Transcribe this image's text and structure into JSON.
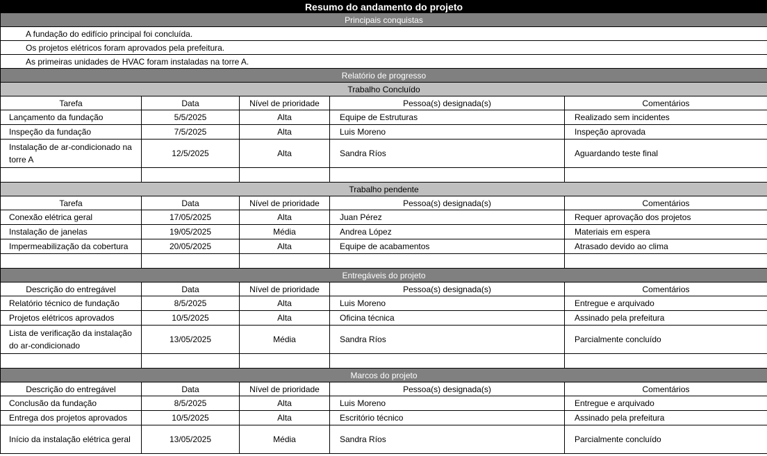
{
  "title": "Resumo do andamento do projeto",
  "achievements": {
    "heading": "Principais conquistas",
    "items": [
      "A fundação do edifício principal foi concluída.",
      "Os projetos elétricos foram aprovados pela prefeitura.",
      "As primeiras unidades de HVAC foram instaladas na torre A."
    ]
  },
  "progress_heading": "Relatório de progresso",
  "sections": [
    {
      "heading": "Trabalho Concluído",
      "style": "sub",
      "columns": [
        "Tarefa",
        "Data",
        "Nível de prioridade",
        "Pessoa(s) designada(s)",
        "Comentários"
      ],
      "rows": [
        [
          "Lançamento da fundação",
          "5/5/2025",
          "Alta",
          "Equipe de Estruturas",
          "Realizado sem incidentes"
        ],
        [
          "Inspeção da fundação",
          "7/5/2025",
          "Alta",
          "Luis Moreno",
          "Inspeção aprovada"
        ],
        [
          "Instalação de ar-condicionado na torre A",
          "12/5/2025",
          "Alta",
          "Sandra Ríos",
          "Aguardando teste final"
        ],
        [
          "",
          "",
          "",
          "",
          ""
        ]
      ]
    },
    {
      "heading": "Trabalho pendente",
      "style": "sub",
      "columns": [
        "Tarefa",
        "Data",
        "Nível de prioridade",
        "Pessoa(s) designada(s)",
        "Comentários"
      ],
      "rows": [
        [
          "Conexão elétrica geral",
          "17/05/2025",
          "Alta",
          "Juan Pérez",
          "Requer aprovação dos projetos"
        ],
        [
          "Instalação de janelas",
          "19/05/2025",
          "Média",
          "Andrea López",
          "Materiais em espera"
        ],
        [
          "Impermeabilização da cobertura",
          "20/05/2025",
          "Alta",
          "Equipe de acabamentos",
          "Atrasado devido ao clima"
        ],
        [
          "",
          "",
          "",
          "",
          ""
        ]
      ]
    },
    {
      "heading": "Entregáveis do projeto",
      "style": "sec",
      "columns": [
        "Descrição do entregável",
        "Data",
        "Nível de prioridade",
        "Pessoa(s) designada(s)",
        "Comentários"
      ],
      "rows": [
        [
          "Relatório técnico de fundação",
          "8/5/2025",
          "Alta",
          "Luis Moreno",
          "Entregue e arquivado"
        ],
        [
          "Projetos elétricos aprovados",
          "10/5/2025",
          "Alta",
          "Oficina técnica",
          "Assinado pela prefeitura"
        ],
        [
          "Lista de verificação da instalação do ar-condicionado",
          "13/05/2025",
          "Média",
          "Sandra Ríos",
          "Parcialmente concluído"
        ],
        [
          "",
          "",
          "",
          "",
          ""
        ]
      ]
    },
    {
      "heading": "Marcos do projeto",
      "style": "sec",
      "columns": [
        "Descrição do entregável",
        "Data",
        "Nível de prioridade",
        "Pessoa(s) designada(s)",
        "Comentários"
      ],
      "rows": [
        [
          "Conclusão da fundação",
          "8/5/2025",
          "Alta",
          "Luis Moreno",
          "Entregue e arquivado"
        ],
        [
          "Entrega dos projetos aprovados",
          "10/5/2025",
          "Alta",
          "Escritório técnico",
          "Assinado pela prefeitura"
        ],
        [
          "Início da instalação elétrica geral",
          "13/05/2025",
          "Média",
          "Sandra Ríos",
          "Parcialmente concluído"
        ]
      ]
    }
  ]
}
